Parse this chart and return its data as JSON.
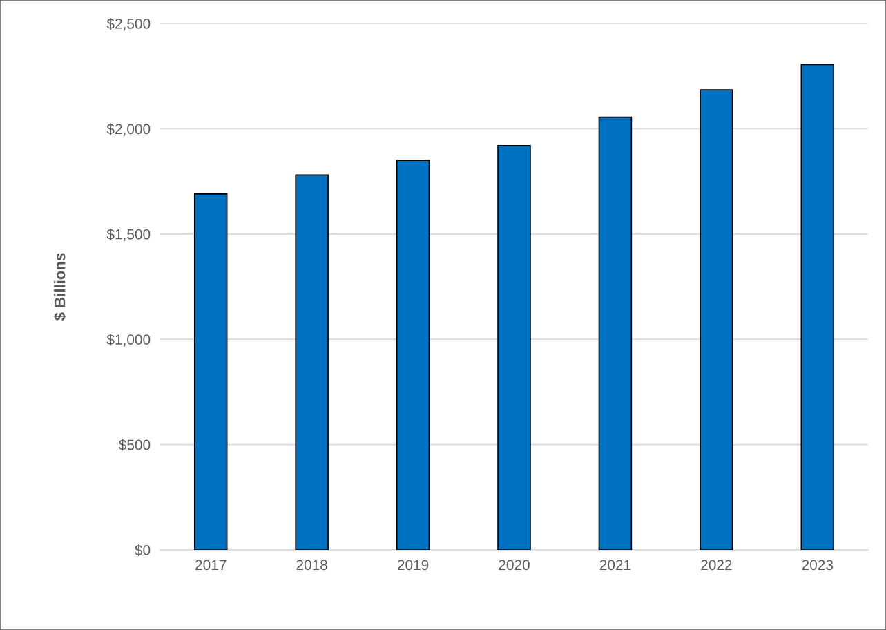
{
  "chart_data": {
    "type": "bar",
    "ylabel": "$ Billions",
    "categories": [
      "2017",
      "2018",
      "2019",
      "2020",
      "2021",
      "2022",
      "2023"
    ],
    "values": [
      1690,
      1780,
      1850,
      1920,
      2055,
      2185,
      2305
    ],
    "color": "#0070c0",
    "ylim": [
      0,
      2500
    ],
    "yticks": [
      {
        "value": 0,
        "label": "$0"
      },
      {
        "value": 500,
        "label": "$500"
      },
      {
        "value": 1000,
        "label": "$1,000"
      },
      {
        "value": 1500,
        "label": "$1,500"
      },
      {
        "value": 2000,
        "label": "$2,000"
      },
      {
        "value": 2500,
        "label": "$2,500"
      }
    ],
    "grid": "y",
    "legend": false
  }
}
